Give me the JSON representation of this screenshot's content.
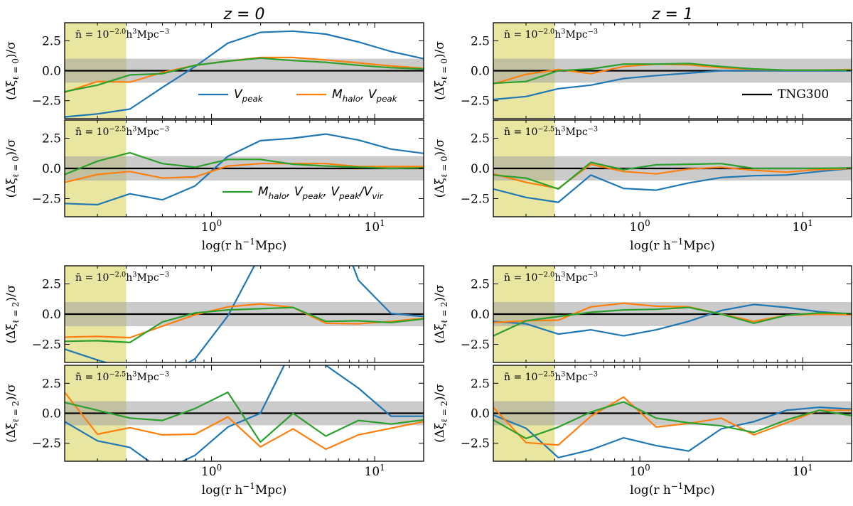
{
  "chart_data": {
    "type": "line",
    "column_titles": [
      "z = 0",
      "z = 1"
    ],
    "xlabel": "log(r h^{−1}Mpc)",
    "xscale": "log",
    "xlim": [
      0.126,
      19.95
    ],
    "ylim": [
      -4,
      4
    ],
    "x_ticks": [
      {
        "value": 1,
        "label": "10^{0}"
      },
      {
        "value": 10,
        "label": "10^{1}"
      }
    ],
    "y_ticks": [
      {
        "value": 2.5,
        "label": "2.5"
      },
      {
        "value": 0,
        "label": "0.0"
      },
      {
        "value": -2.5,
        "label": "−2.5"
      }
    ],
    "sigma_band": [
      -1,
      1
    ],
    "excluded_region": [
      0.126,
      0.3
    ],
    "colors": {
      "blue": "#1f77b4",
      "orange": "#ff7f0e",
      "green": "#2ca02c",
      "reference": "#000000",
      "band": "#c8c8c8",
      "excluded": "#e8e6a0"
    },
    "legend": [
      {
        "label": "V_{peak}",
        "color": "#1f77b4",
        "panel": 0
      },
      {
        "label": "M_{halo}, V_{peak}",
        "color": "#ff7f0e",
        "panel": 0
      },
      {
        "label": "M_{halo}, V_{peak}, V_{peak}/V_{vir}",
        "color": "#2ca02c",
        "panel": 1
      },
      {
        "label": "TNG300",
        "color": "#000000",
        "panel": 4
      }
    ],
    "x": [
      0.126,
      0.2,
      0.316,
      0.5,
      0.794,
      1.259,
      1.995,
      3.162,
      5.012,
      7.943,
      12.59,
      19.95
    ],
    "panels": [
      {
        "column": "z = 0",
        "ylabel": "(Δξ_{ℓ = 0})/σ",
        "annotation": "n̄ = 10^{−2.0}h^{3}Mpc^{−3}",
        "series": [
          {
            "name": "V_peak",
            "color": "#1f77b4",
            "values": [
              -3.85,
              -3.6,
              -3.2,
              -1.4,
              0.35,
              2.3,
              3.2,
              3.3,
              3.05,
              2.4,
              1.6,
              1.0
            ]
          },
          {
            "name": "M_halo, V_peak",
            "color": "#ff7f0e",
            "values": [
              -1.8,
              -0.9,
              -0.95,
              -0.15,
              0.45,
              0.8,
              1.1,
              1.1,
              0.9,
              0.65,
              0.4,
              0.2
            ]
          },
          {
            "name": "M_halo, V_peak, V_peak/V_vir",
            "color": "#2ca02c",
            "values": [
              -1.75,
              -1.2,
              -0.35,
              -0.25,
              0.45,
              0.8,
              1.05,
              0.85,
              0.7,
              0.45,
              0.25,
              0.15
            ]
          }
        ]
      },
      {
        "column": "z = 0",
        "ylabel": "(Δξ_{ℓ = 0})/σ",
        "annotation": "n̄ = 10^{−2.5}h^{3}Mpc^{−3}",
        "series": [
          {
            "name": "V_peak",
            "color": "#1f77b4",
            "values": [
              -2.9,
              -3.0,
              -2.1,
              -2.6,
              -1.45,
              1.0,
              2.3,
              2.5,
              2.85,
              2.35,
              1.6,
              1.25
            ]
          },
          {
            "name": "M_halo, V_peak",
            "color": "#ff7f0e",
            "values": [
              -1.15,
              -0.5,
              -0.25,
              -0.8,
              -0.7,
              0.2,
              0.4,
              0.4,
              0.4,
              0.15,
              0.15,
              0.15
            ]
          },
          {
            "name": "M_halo, V_peak, V_peak/V_vir",
            "color": "#2ca02c",
            "values": [
              -0.5,
              0.6,
              1.3,
              0.4,
              0.1,
              0.75,
              0.75,
              0.35,
              0.2,
              0.1,
              0.0,
              0.05
            ]
          }
        ]
      },
      {
        "column": "z = 0",
        "ylabel": "(Δξ_{ℓ = 2})/σ",
        "annotation": "n̄ = 10^{−2.0}h^{3}Mpc^{−3}",
        "series": [
          {
            "name": "V_peak",
            "color": "#1f77b4",
            "values": [
              -2.9,
              -3.8,
              -4.6,
              -5.2,
              -3.7,
              -0.15,
              4.95,
              8.0,
              10.0,
              2.8,
              0.05,
              -0.2
            ]
          },
          {
            "name": "M_halo, V_peak",
            "color": "#ff7f0e",
            "values": [
              -1.9,
              -1.85,
              -1.95,
              -1.0,
              -0.05,
              0.6,
              0.85,
              0.55,
              -0.75,
              -0.8,
              -0.6,
              -0.35
            ]
          },
          {
            "name": "M_halo, V_peak, V_peak/V_vir",
            "color": "#2ca02c",
            "values": [
              -2.25,
              -2.2,
              -2.35,
              -0.65,
              0.1,
              0.35,
              0.45,
              0.55,
              -0.6,
              -0.55,
              -0.7,
              -0.4
            ]
          }
        ]
      },
      {
        "column": "z = 0",
        "ylabel": "(Δξ_{ℓ = 2})/σ",
        "annotation": "n̄ = 10^{−2.5}h^{3}Mpc^{−3}",
        "series": [
          {
            "name": "V_peak",
            "color": "#1f77b4",
            "values": [
              -0.7,
              -2.3,
              -2.85,
              -4.8,
              -3.5,
              -1.15,
              0.0,
              5.5,
              4.0,
              2.1,
              -0.25,
              -0.25
            ]
          },
          {
            "name": "M_halo, V_peak",
            "color": "#ff7f0e",
            "values": [
              1.75,
              -1.75,
              -1.2,
              -1.8,
              -1.75,
              -0.3,
              -2.8,
              -1.3,
              -3.0,
              -1.8,
              -1.25,
              -0.7
            ]
          },
          {
            "name": "M_halo, V_peak, V_peak/V_vir",
            "color": "#2ca02c",
            "values": [
              0.9,
              0.25,
              -0.4,
              -0.6,
              0.4,
              1.75,
              -2.4,
              0.0,
              -1.9,
              -0.6,
              -0.9,
              -0.55
            ]
          }
        ]
      },
      {
        "column": "z = 1",
        "ylabel": "(Δξ_{ℓ = 0})/σ",
        "annotation": "n̄ = 10^{−2.0}h^{3}Mpc^{−3}",
        "series": [
          {
            "name": "V_peak",
            "color": "#1f77b4",
            "values": [
              -2.4,
              -2.15,
              -1.5,
              -1.2,
              -0.65,
              -0.4,
              -0.2,
              0.0,
              0.0,
              0.0,
              0.0,
              0.0
            ]
          },
          {
            "name": "M_halo, V_peak",
            "color": "#ff7f0e",
            "values": [
              -1.1,
              -0.3,
              0.1,
              -0.25,
              0.35,
              0.55,
              0.5,
              0.25,
              0.1,
              0.05,
              0.05,
              0.1
            ]
          },
          {
            "name": "M_halo, V_peak, V_peak/V_vir",
            "color": "#2ca02c",
            "values": [
              -1.05,
              -0.9,
              0.0,
              0.15,
              0.55,
              0.55,
              0.6,
              0.35,
              0.15,
              0.05,
              0.05,
              0.05
            ]
          }
        ]
      },
      {
        "column": "z = 1",
        "ylabel": "(Δξ_{ℓ = 0})/σ",
        "annotation": "n̄ = 10^{−2.5}h^{3}Mpc^{−3}",
        "series": [
          {
            "name": "V_peak",
            "color": "#1f77b4",
            "values": [
              -1.7,
              -2.4,
              -2.8,
              -0.55,
              -1.65,
              -1.8,
              -1.2,
              -0.75,
              -0.6,
              -0.55,
              -0.25,
              0.0
            ]
          },
          {
            "name": "M_halo, V_peak",
            "color": "#ff7f0e",
            "values": [
              -0.45,
              -1.15,
              -1.65,
              0.35,
              -0.25,
              -0.45,
              -0.05,
              0.1,
              -0.15,
              -0.3,
              -0.1,
              0.0
            ]
          },
          {
            "name": "M_halo, V_peak, V_peak/V_vir",
            "color": "#2ca02c",
            "values": [
              -0.55,
              -0.8,
              -1.7,
              0.5,
              -0.1,
              0.3,
              0.35,
              0.4,
              0.0,
              0.0,
              0.0,
              0.05
            ]
          }
        ]
      },
      {
        "column": "z = 1",
        "ylabel": "(Δξ_{ℓ = 2})/σ",
        "annotation": "n̄ = 10^{−2.0}h^{3}Mpc^{−3}",
        "series": [
          {
            "name": "V_peak",
            "color": "#1f77b4",
            "values": [
              -0.6,
              -0.8,
              -1.65,
              -1.3,
              -1.8,
              -1.3,
              -0.6,
              0.3,
              0.8,
              0.55,
              0.2,
              0.0
            ]
          },
          {
            "name": "M_halo, V_peak",
            "color": "#ff7f0e",
            "values": [
              -0.7,
              -0.55,
              -0.5,
              0.6,
              0.9,
              0.65,
              0.6,
              0.0,
              -0.6,
              -0.1,
              0.0,
              -0.05
            ]
          },
          {
            "name": "M_halo, V_peak, V_peak/V_vir",
            "color": "#2ca02c",
            "values": [
              -1.8,
              -0.55,
              -0.2,
              0.15,
              0.35,
              0.4,
              0.55,
              0.0,
              -0.75,
              -0.1,
              0.1,
              0.05
            ]
          }
        ]
      },
      {
        "column": "z = 1",
        "ylabel": "(Δξ_{ℓ = 2})/σ",
        "annotation": "n̄ = 10^{−2.5}h^{3}Mpc^{−3}",
        "series": [
          {
            "name": "V_peak",
            "color": "#1f77b4",
            "values": [
              -0.15,
              -1.25,
              -3.7,
              -3.05,
              -2.05,
              -2.7,
              -3.15,
              -1.3,
              -0.7,
              0.25,
              0.5,
              0.35
            ]
          },
          {
            "name": "M_halo, V_peak",
            "color": "#ff7f0e",
            "values": [
              0.5,
              -2.45,
              -2.65,
              -0.25,
              1.35,
              -1.15,
              -0.85,
              -0.4,
              -1.8,
              -0.8,
              0.25,
              0.25
            ]
          },
          {
            "name": "M_halo, V_peak, V_peak/V_vir",
            "color": "#2ca02c",
            "values": [
              -0.55,
              -2.1,
              -1.15,
              0.1,
              0.95,
              -0.4,
              -0.8,
              -1.05,
              -1.6,
              -0.55,
              0.25,
              -0.2
            ]
          }
        ]
      }
    ]
  }
}
